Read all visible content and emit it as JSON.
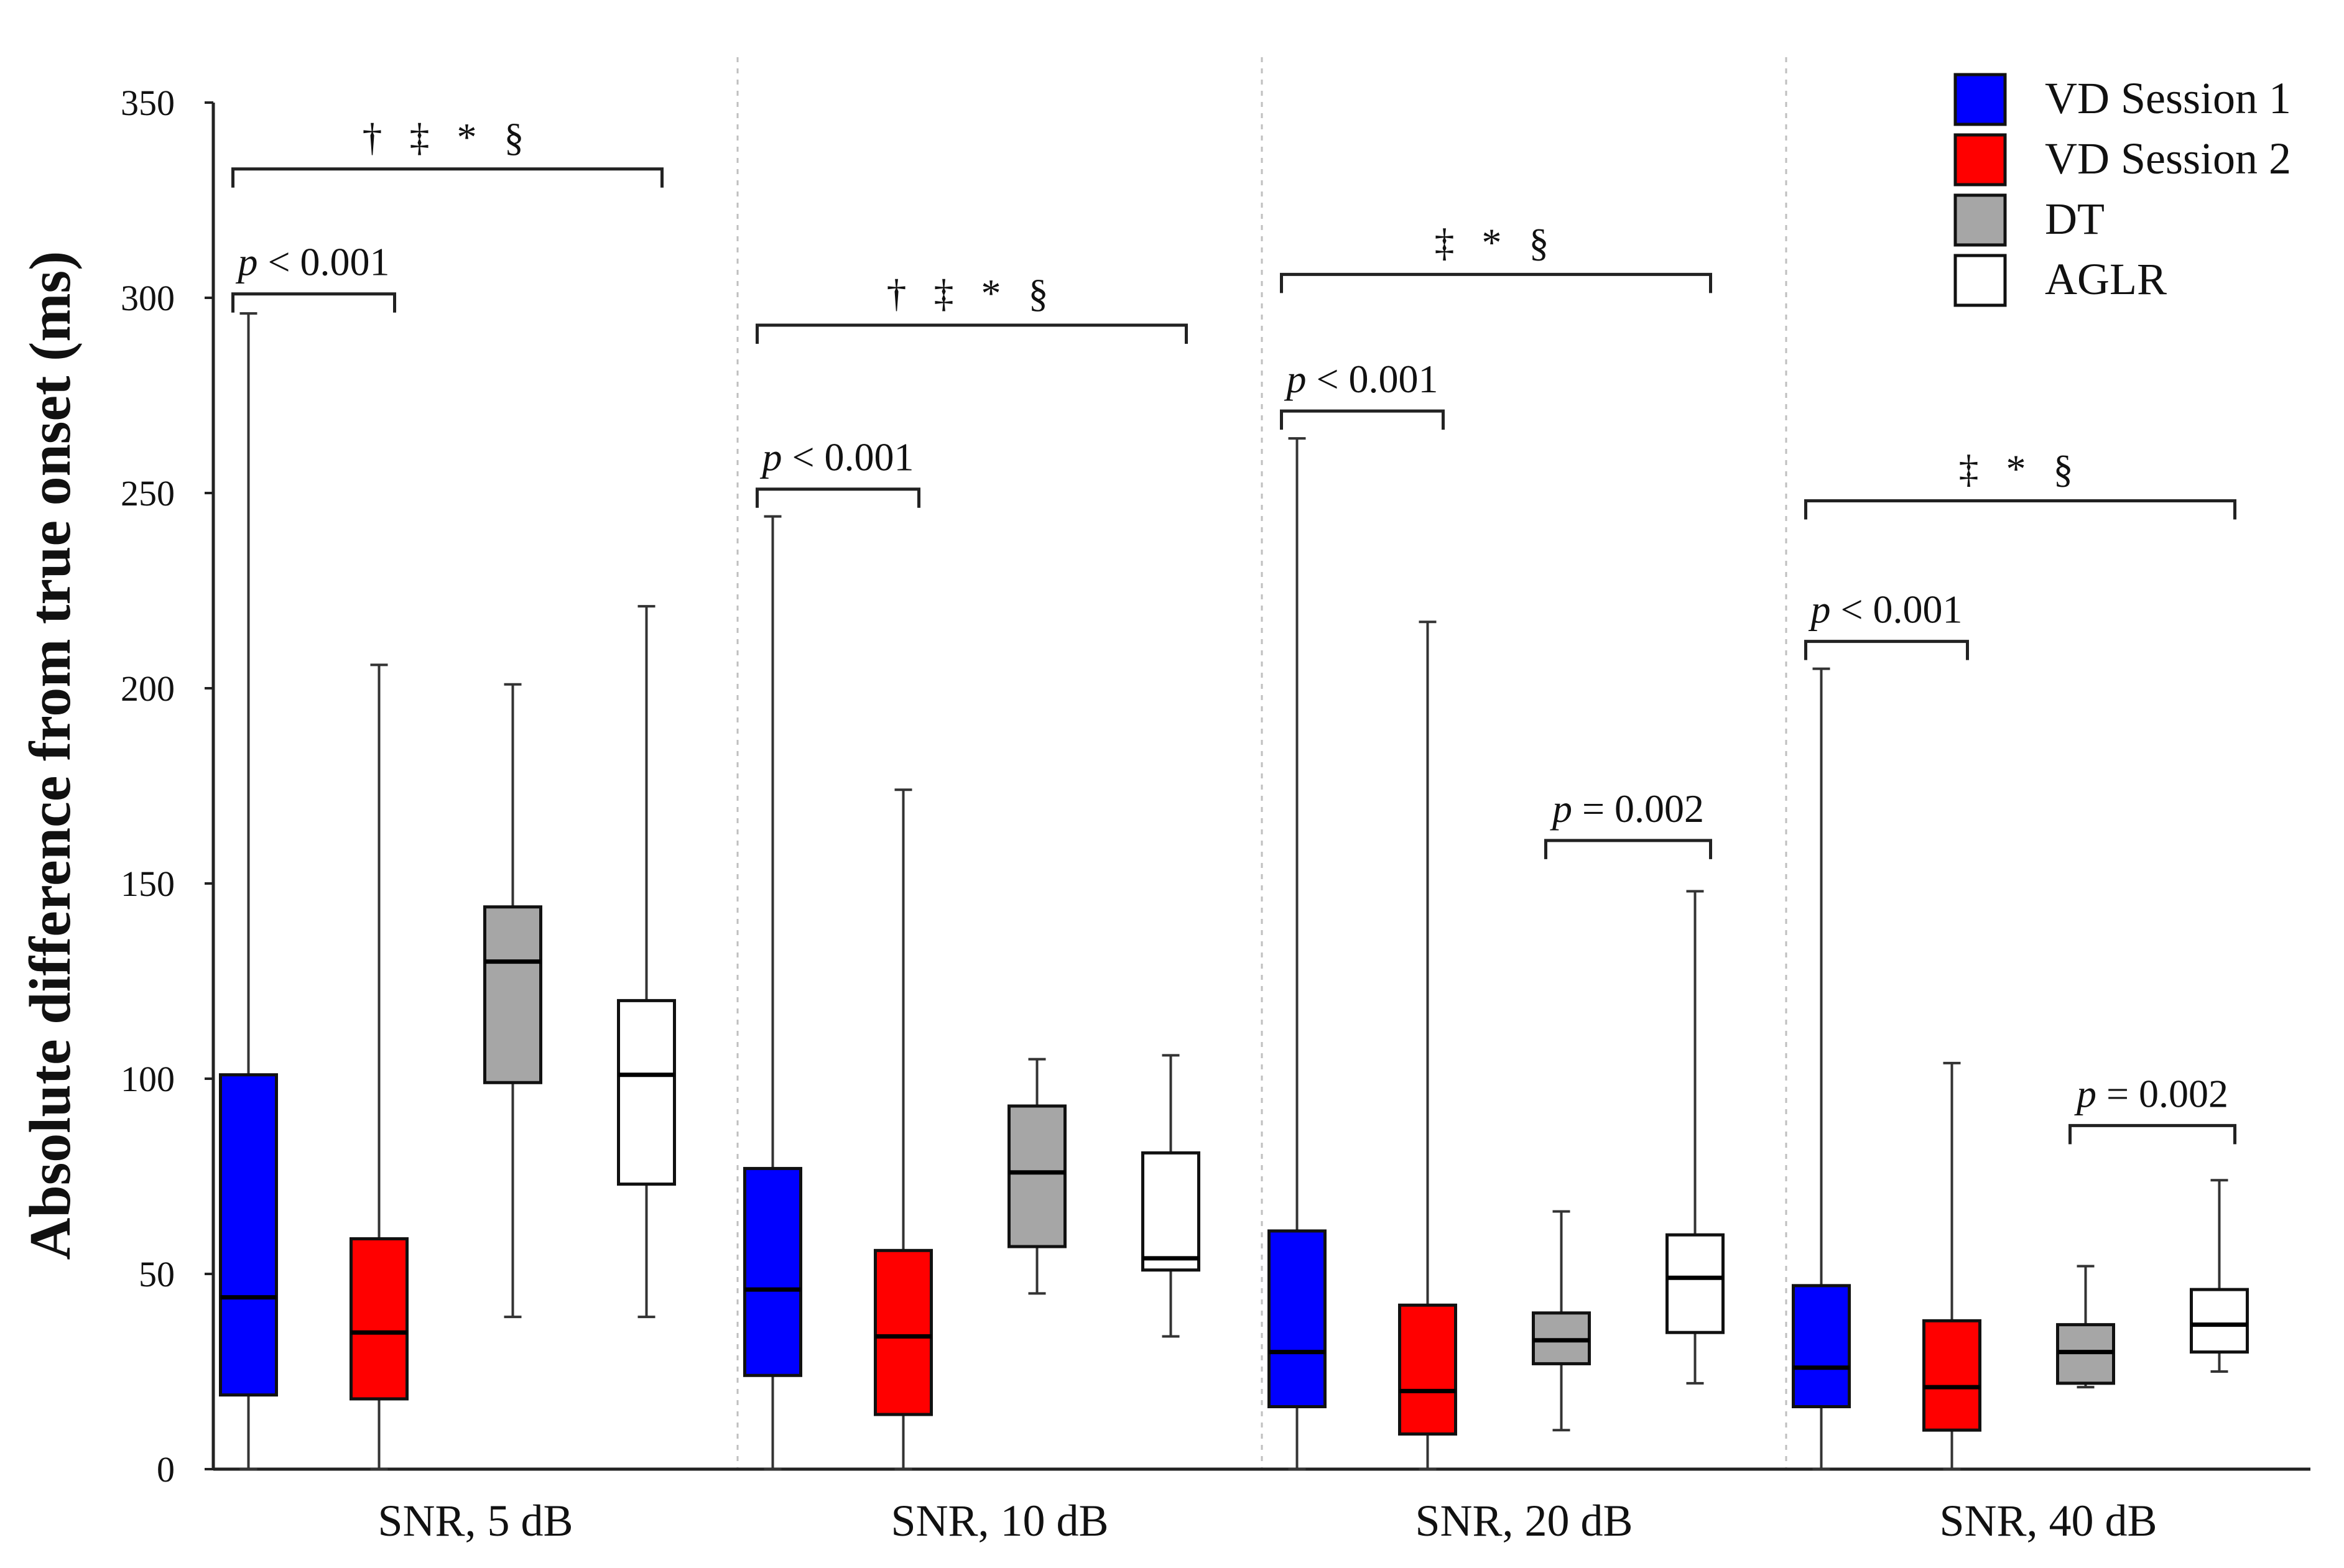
{
  "chart_data": {
    "type": "box",
    "title": "",
    "ylabel": "Absolute difference from true onset (ms)",
    "xlabel": "",
    "ylim": [
      0,
      350
    ],
    "yticks": [
      0,
      50,
      100,
      150,
      200,
      250,
      300,
      350
    ],
    "groups": [
      "SNR, 5 dB",
      "SNR, 10 dB",
      "SNR, 20 dB",
      "SNR, 40 dB"
    ],
    "series": [
      {
        "name": "VD Session 1",
        "color": "#0000ff",
        "boxes": [
          {
            "min": 0,
            "q1": 19,
            "median": 44,
            "q3": 101,
            "max": 296
          },
          {
            "min": 0,
            "q1": 24,
            "median": 46,
            "q3": 77,
            "max": 244
          },
          {
            "min": 0,
            "q1": 16,
            "median": 30,
            "q3": 61,
            "max": 264
          },
          {
            "min": 0,
            "q1": 16,
            "median": 26,
            "q3": 47,
            "max": 205
          }
        ]
      },
      {
        "name": "VD Session 2",
        "color": "#ff0000",
        "boxes": [
          {
            "min": 0,
            "q1": 18,
            "median": 35,
            "q3": 59,
            "max": 206
          },
          {
            "min": 0,
            "q1": 14,
            "median": 34,
            "q3": 56,
            "max": 174
          },
          {
            "min": 0,
            "q1": 9,
            "median": 20,
            "q3": 42,
            "max": 217
          },
          {
            "min": 0,
            "q1": 10,
            "median": 21,
            "q3": 38,
            "max": 104
          }
        ]
      },
      {
        "name": "DT",
        "color": "#a6a6a6",
        "boxes": [
          {
            "min": 39,
            "q1": 99,
            "median": 130,
            "q3": 144,
            "max": 201
          },
          {
            "min": 45,
            "q1": 57,
            "median": 76,
            "q3": 93,
            "max": 105
          },
          {
            "min": 10,
            "q1": 27,
            "median": 33,
            "q3": 40,
            "max": 66
          },
          {
            "min": 21,
            "q1": 22,
            "median": 30,
            "q3": 37,
            "max": 52
          }
        ]
      },
      {
        "name": "AGLR",
        "color": "#ffffff",
        "boxes": [
          {
            "min": 39,
            "q1": 73,
            "median": 101,
            "q3": 120,
            "max": 221
          },
          {
            "min": 34,
            "q1": 51,
            "median": 54,
            "q3": 81,
            "max": 106
          },
          {
            "min": 22,
            "q1": 35,
            "median": 49,
            "q3": 60,
            "max": 148
          },
          {
            "min": 25,
            "q1": 30,
            "median": 37,
            "q3": 46,
            "max": 74
          }
        ]
      }
    ],
    "annotations": [
      {
        "group": 0,
        "from": 0,
        "to": 3,
        "y": 333,
        "text": "† ‡ * §"
      },
      {
        "group": 0,
        "from": 0,
        "to": 1,
        "y": 301,
        "text": "p < 0.001"
      },
      {
        "group": 1,
        "from": 0,
        "to": 3,
        "y": 293,
        "text": "† ‡ * §"
      },
      {
        "group": 1,
        "from": 0,
        "to": 1,
        "y": 251,
        "text": "p < 0.001"
      },
      {
        "group": 2,
        "from": 0,
        "to": 3,
        "y": 306,
        "text": "‡ * §"
      },
      {
        "group": 2,
        "from": 0,
        "to": 1,
        "y": 271,
        "text": "p < 0.001"
      },
      {
        "group": 2,
        "from": 2,
        "to": 3,
        "y": 161,
        "text": "p = 0.002"
      },
      {
        "group": 3,
        "from": 0,
        "to": 3,
        "y": 248,
        "text": "‡ * §"
      },
      {
        "group": 3,
        "from": 0,
        "to": 1,
        "y": 212,
        "text": "p < 0.001"
      },
      {
        "group": 3,
        "from": 2,
        "to": 3,
        "y": 88,
        "text": "p = 0.002"
      }
    ],
    "legend_position": "top-right"
  }
}
